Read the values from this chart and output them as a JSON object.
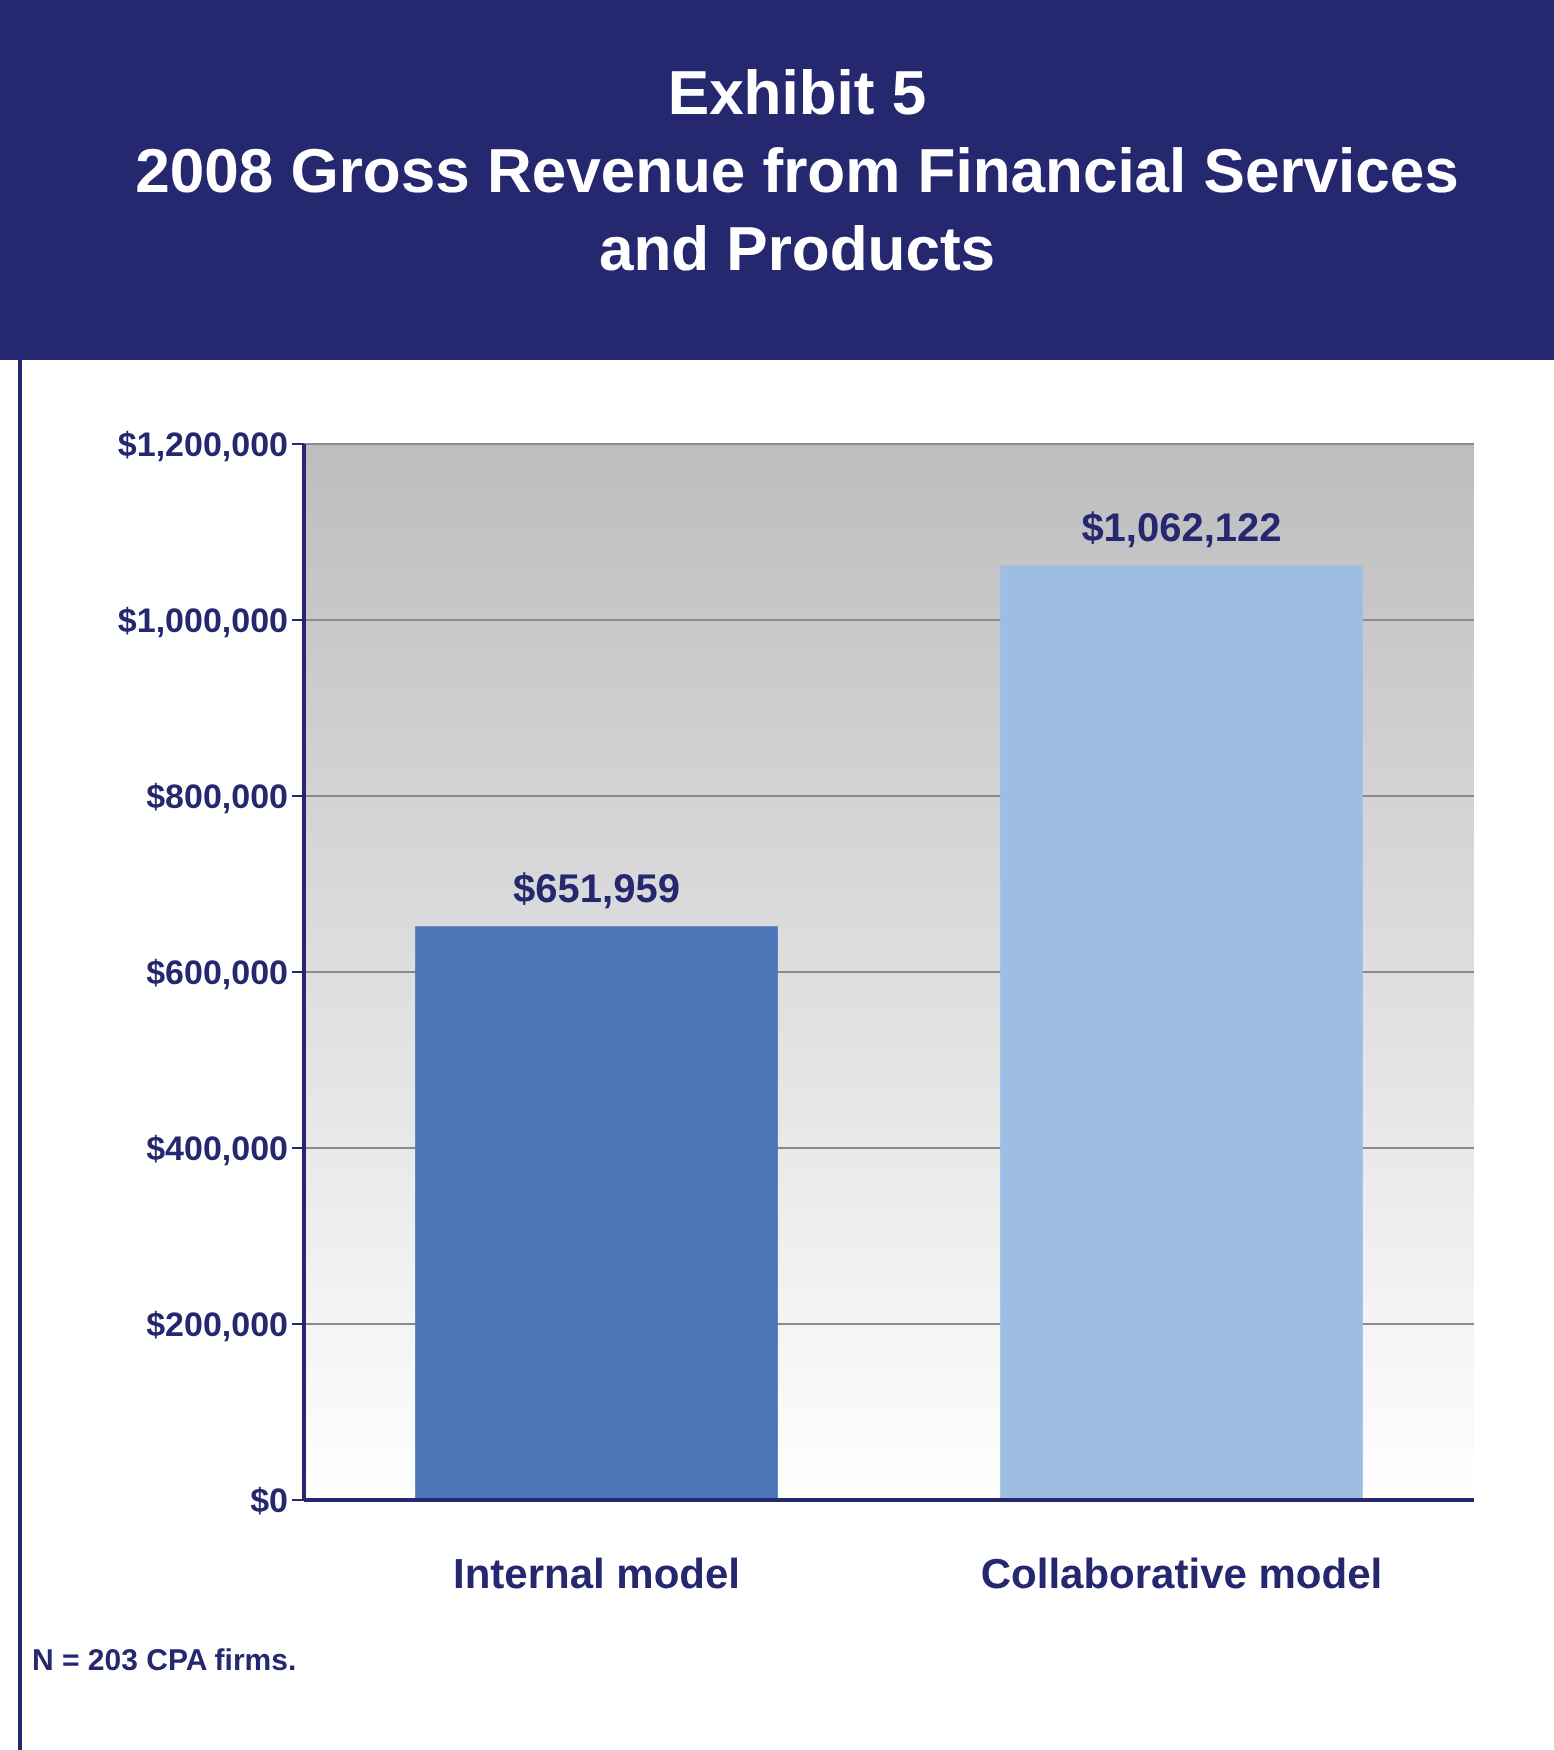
{
  "chart_data": {
    "type": "bar",
    "title": "Exhibit 5",
    "subtitle": "2008 Gross Revenue from Financial Services and Products",
    "categories": [
      "Internal model",
      "Collaborative model"
    ],
    "values": [
      651959,
      1062122
    ],
    "colors": [
      "#4a76b8",
      "#9dbde3"
    ],
    "value_labels": [
      "$651,959",
      "$1,062,122"
    ],
    "ylim": [
      0,
      1200000
    ],
    "yticks": [
      {
        "value": 0,
        "label": "$0"
      },
      {
        "value": 200000,
        "label": "$200,000"
      },
      {
        "value": 400000,
        "label": "$400,000"
      },
      {
        "value": 600000,
        "label": "$600,000"
      },
      {
        "value": 800000,
        "label": "$800,000"
      },
      {
        "value": 1000000,
        "label": "$1,000,000"
      },
      {
        "value": 1200000,
        "label": "$1,200,000"
      }
    ],
    "grid": "y",
    "annotations": [
      "N = 203 CPA firms."
    ]
  }
}
